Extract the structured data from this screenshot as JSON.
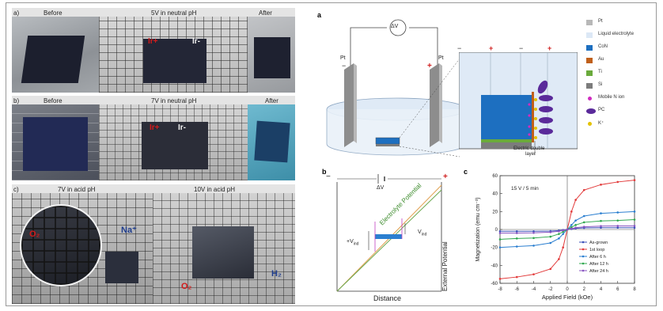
{
  "panel_a_photos": {
    "letter": "a)",
    "before": "Before",
    "middle": "5V in neutral pH",
    "after": "After",
    "ir_plus": "Ir+",
    "ir_minus": "Ir-"
  },
  "panel_b_photos": {
    "letter": "b)",
    "before": "Before",
    "middle": "7V in neutral pH",
    "after": "After",
    "ir_plus": "Ir+",
    "ir_minus": "Ir-"
  },
  "panel_c_photos": {
    "letter": "c)",
    "left": "7V in acid pH",
    "right": "10V in acid pH",
    "o2_left": "O₂",
    "na": "Na⁺",
    "o2_right": "O₂",
    "h2": "H₂"
  },
  "schematic_a": {
    "letter": "a",
    "voltage": "ΔV",
    "pt_left": "Pt",
    "pt_right": "Pt",
    "minus": "−",
    "plus": "+",
    "edl_label_1": "Electric double",
    "edl_label_2": "layer",
    "legend": [
      {
        "label": "Pt",
        "color": "#b8b8b8"
      },
      {
        "label": "Liquid electrolyte",
        "color": "#dce8f6"
      },
      {
        "label": "CoN",
        "color": "#1d6fc0"
      },
      {
        "label": "Au",
        "color": "#c0601a"
      },
      {
        "label": "Ti",
        "color": "#6aaa3c"
      },
      {
        "label": "Si",
        "color": "#7c7c7c"
      },
      {
        "label": "Mobile N ion",
        "color": "#d02cc0"
      },
      {
        "label": "PC",
        "color": "#5a2a9a"
      },
      {
        "label": "K⁺",
        "color": "#e4c200"
      }
    ]
  },
  "schematic_b": {
    "letter": "b",
    "voltage": "ΔV",
    "minus": "−",
    "plus": "+",
    "electrolyte_potential": "Electrolyte Potential",
    "external_potential": "External Potential",
    "distance": "Distance",
    "v_ind_left": "+V",
    "v_ind_right": "V",
    "sub": "ind"
  },
  "chart_data": {
    "type": "line",
    "letter": "c",
    "title": "",
    "annotation": "15 V / 5 min",
    "xlabel": "Applied Field (kOe)",
    "ylabel": "Magnetization (emu cm⁻³)",
    "xlim": [
      -8,
      8
    ],
    "ylim": [
      -60,
      60
    ],
    "xticks": [
      -8,
      -6,
      -4,
      -2,
      0,
      2,
      4,
      6,
      8
    ],
    "yticks": [
      -60,
      -40,
      -20,
      0,
      20,
      40,
      60
    ],
    "legend_position": "bottom-right",
    "x": [
      -8,
      -6,
      -4,
      -2,
      -1,
      -0.5,
      0,
      0.5,
      1,
      2,
      4,
      6,
      8
    ],
    "series": [
      {
        "name": "As-grown",
        "color": "#3a4fb8",
        "values": [
          -2,
          -2,
          -2,
          -1.8,
          -1.2,
          -0.6,
          0,
          0.6,
          1.2,
          1.8,
          2,
          2,
          2
        ]
      },
      {
        "name": "1st loop",
        "color": "#e23a3a",
        "values": [
          -55,
          -53,
          -50,
          -44,
          -33,
          -20,
          0,
          20,
          33,
          44,
          50,
          53,
          55
        ]
      },
      {
        "name": "After 6 h",
        "color": "#2b7fd0",
        "values": [
          -20,
          -19,
          -18,
          -15,
          -10,
          -5,
          0,
          5,
          10,
          15,
          18,
          19,
          20
        ]
      },
      {
        "name": "After 12 h",
        "color": "#2fa84f",
        "values": [
          -11,
          -10,
          -9.5,
          -8,
          -5,
          -2.5,
          0,
          2.5,
          5,
          8,
          9.5,
          10,
          11
        ]
      },
      {
        "name": "After 24 h",
        "color": "#8a56c2",
        "values": [
          -4,
          -4,
          -3.8,
          -3,
          -2,
          -1,
          0,
          1,
          2,
          3,
          3.8,
          4,
          4
        ]
      }
    ]
  }
}
